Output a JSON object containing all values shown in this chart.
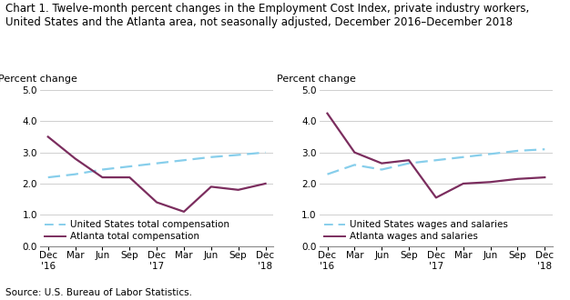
{
  "title_line1": "Chart 1. Twelve-month percent changes in the Employment Cost Index, private industry workers,",
  "title_line2": "United States and the Atlanta area, not seasonally adjusted, December 2016–December 2018",
  "ylabel": "Percent change",
  "source": "Source: U.S. Bureau of Labor Statistics.",
  "x_labels": [
    "Dec\n'16",
    "Mar",
    "Jun",
    "Sep",
    "Dec\n'17",
    "Mar",
    "Jun",
    "Sep",
    "Dec\n'18"
  ],
  "x_positions": [
    0,
    1,
    2,
    3,
    4,
    5,
    6,
    7,
    8
  ],
  "left": {
    "us_comp": [
      2.2,
      2.3,
      2.45,
      2.55,
      2.65,
      2.75,
      2.85,
      2.92,
      3.0
    ],
    "atl_comp": [
      3.5,
      2.8,
      2.2,
      2.2,
      1.4,
      1.1,
      1.9,
      1.8,
      2.0
    ],
    "legend1": "United States total compensation",
    "legend2": "Atlanta total compensation"
  },
  "right": {
    "us_wages": [
      2.3,
      2.6,
      2.45,
      2.65,
      2.75,
      2.85,
      2.95,
      3.05,
      3.1
    ],
    "atl_wages": [
      4.25,
      3.0,
      2.65,
      2.75,
      1.55,
      2.0,
      2.05,
      2.15,
      2.2
    ],
    "legend1": "United States wages and salaries",
    "legend2": "Atlanta wages and salaries"
  },
  "ylim": [
    0.0,
    5.0
  ],
  "yticks": [
    0.0,
    1.0,
    2.0,
    3.0,
    4.0,
    5.0
  ],
  "us_color": "#87CEEB",
  "atl_color": "#7B2D5E",
  "title_fontsize": 8.5,
  "axis_label_fontsize": 8,
  "tick_fontsize": 7.5,
  "legend_fontsize": 7.5,
  "source_fontsize": 7.5
}
